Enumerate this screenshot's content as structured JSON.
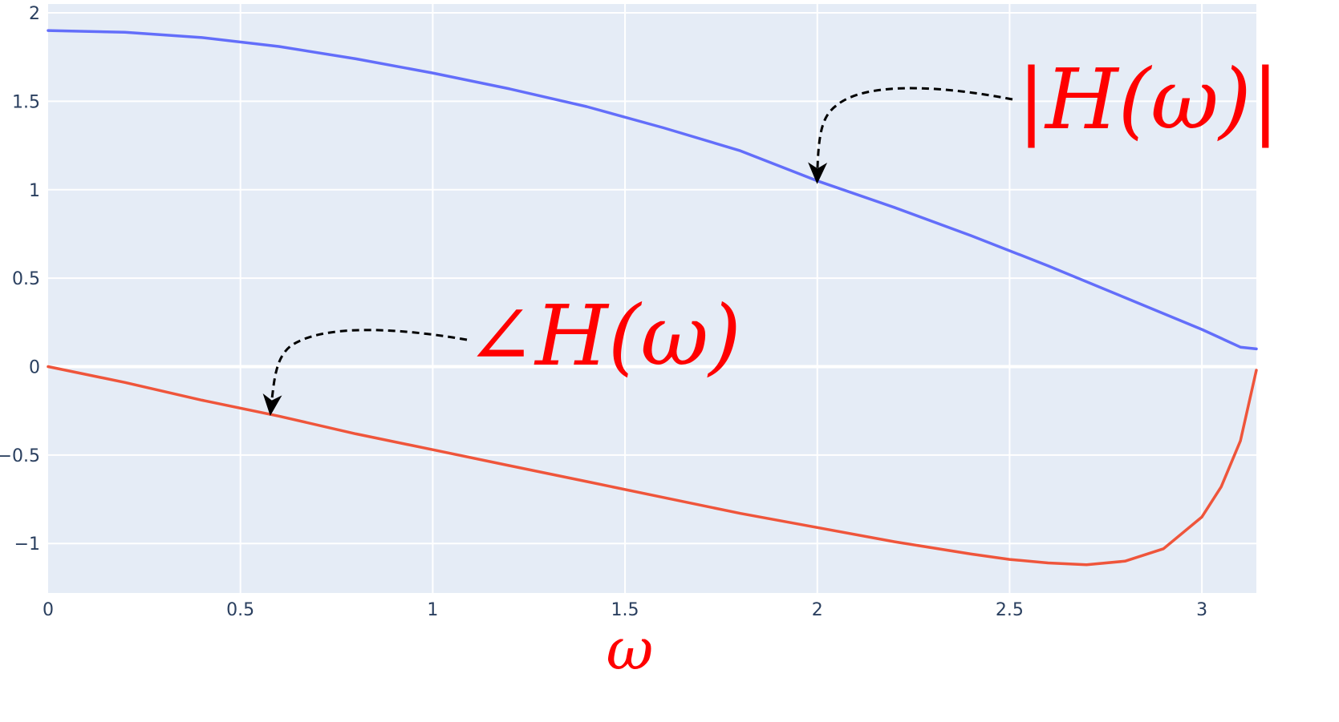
{
  "chart_data": {
    "type": "line",
    "xlabel": "ω",
    "ylabel": "",
    "xlim": [
      0,
      3.1416
    ],
    "ylim": [
      -1.28,
      2.05
    ],
    "grid": true,
    "x_ticks": [
      "0",
      "0.5",
      "1",
      "1.5",
      "2",
      "2.5",
      "3"
    ],
    "y_ticks": [
      "2",
      "1.5",
      "1",
      "0.5",
      "0",
      "−0.5",
      "−1"
    ],
    "x_tick_values": [
      0,
      0.5,
      1,
      1.5,
      2,
      2.5,
      3
    ],
    "y_tick_values": [
      2,
      1.5,
      1,
      0.5,
      0,
      -0.5,
      -1
    ],
    "series": [
      {
        "key": "magnitude",
        "color": "#636efa",
        "x": [
          0,
          0.2,
          0.4,
          0.6,
          0.8,
          1.0,
          1.2,
          1.4,
          1.6,
          1.8,
          2.0,
          2.2,
          2.4,
          2.6,
          2.8,
          3.0,
          3.1,
          3.1416
        ],
        "y": [
          1.9,
          1.89,
          1.86,
          1.81,
          1.74,
          1.66,
          1.57,
          1.47,
          1.35,
          1.22,
          1.05,
          0.9,
          0.74,
          0.57,
          0.39,
          0.21,
          0.11,
          0.1
        ]
      },
      {
        "key": "phase",
        "color": "#ef553b",
        "x": [
          0,
          0.2,
          0.4,
          0.6,
          0.8,
          1.0,
          1.2,
          1.4,
          1.6,
          1.8,
          2.0,
          2.2,
          2.4,
          2.5,
          2.6,
          2.7,
          2.8,
          2.9,
          3.0,
          3.05,
          3.1,
          3.1416
        ],
        "y": [
          0,
          -0.09,
          -0.19,
          -0.28,
          -0.38,
          -0.47,
          -0.56,
          -0.65,
          -0.74,
          -0.83,
          -0.91,
          -0.99,
          -1.06,
          -1.09,
          -1.11,
          -1.12,
          -1.1,
          -1.03,
          -0.85,
          -0.68,
          -0.42,
          -0.02
        ]
      }
    ],
    "annotations": [
      {
        "text": "|H(ω)|",
        "color": "#ff0000",
        "arrow_to": [
          2.0,
          1.05
        ]
      },
      {
        "text": "∠H(ω)",
        "color": "#ff0000",
        "arrow_to": [
          0.58,
          -0.27
        ]
      }
    ]
  },
  "style": {
    "plot_bg": "#e5ecf6",
    "grid_color": "#ffffff",
    "tick_color": "#2a3f5f",
    "label_color": "#ff0000"
  }
}
